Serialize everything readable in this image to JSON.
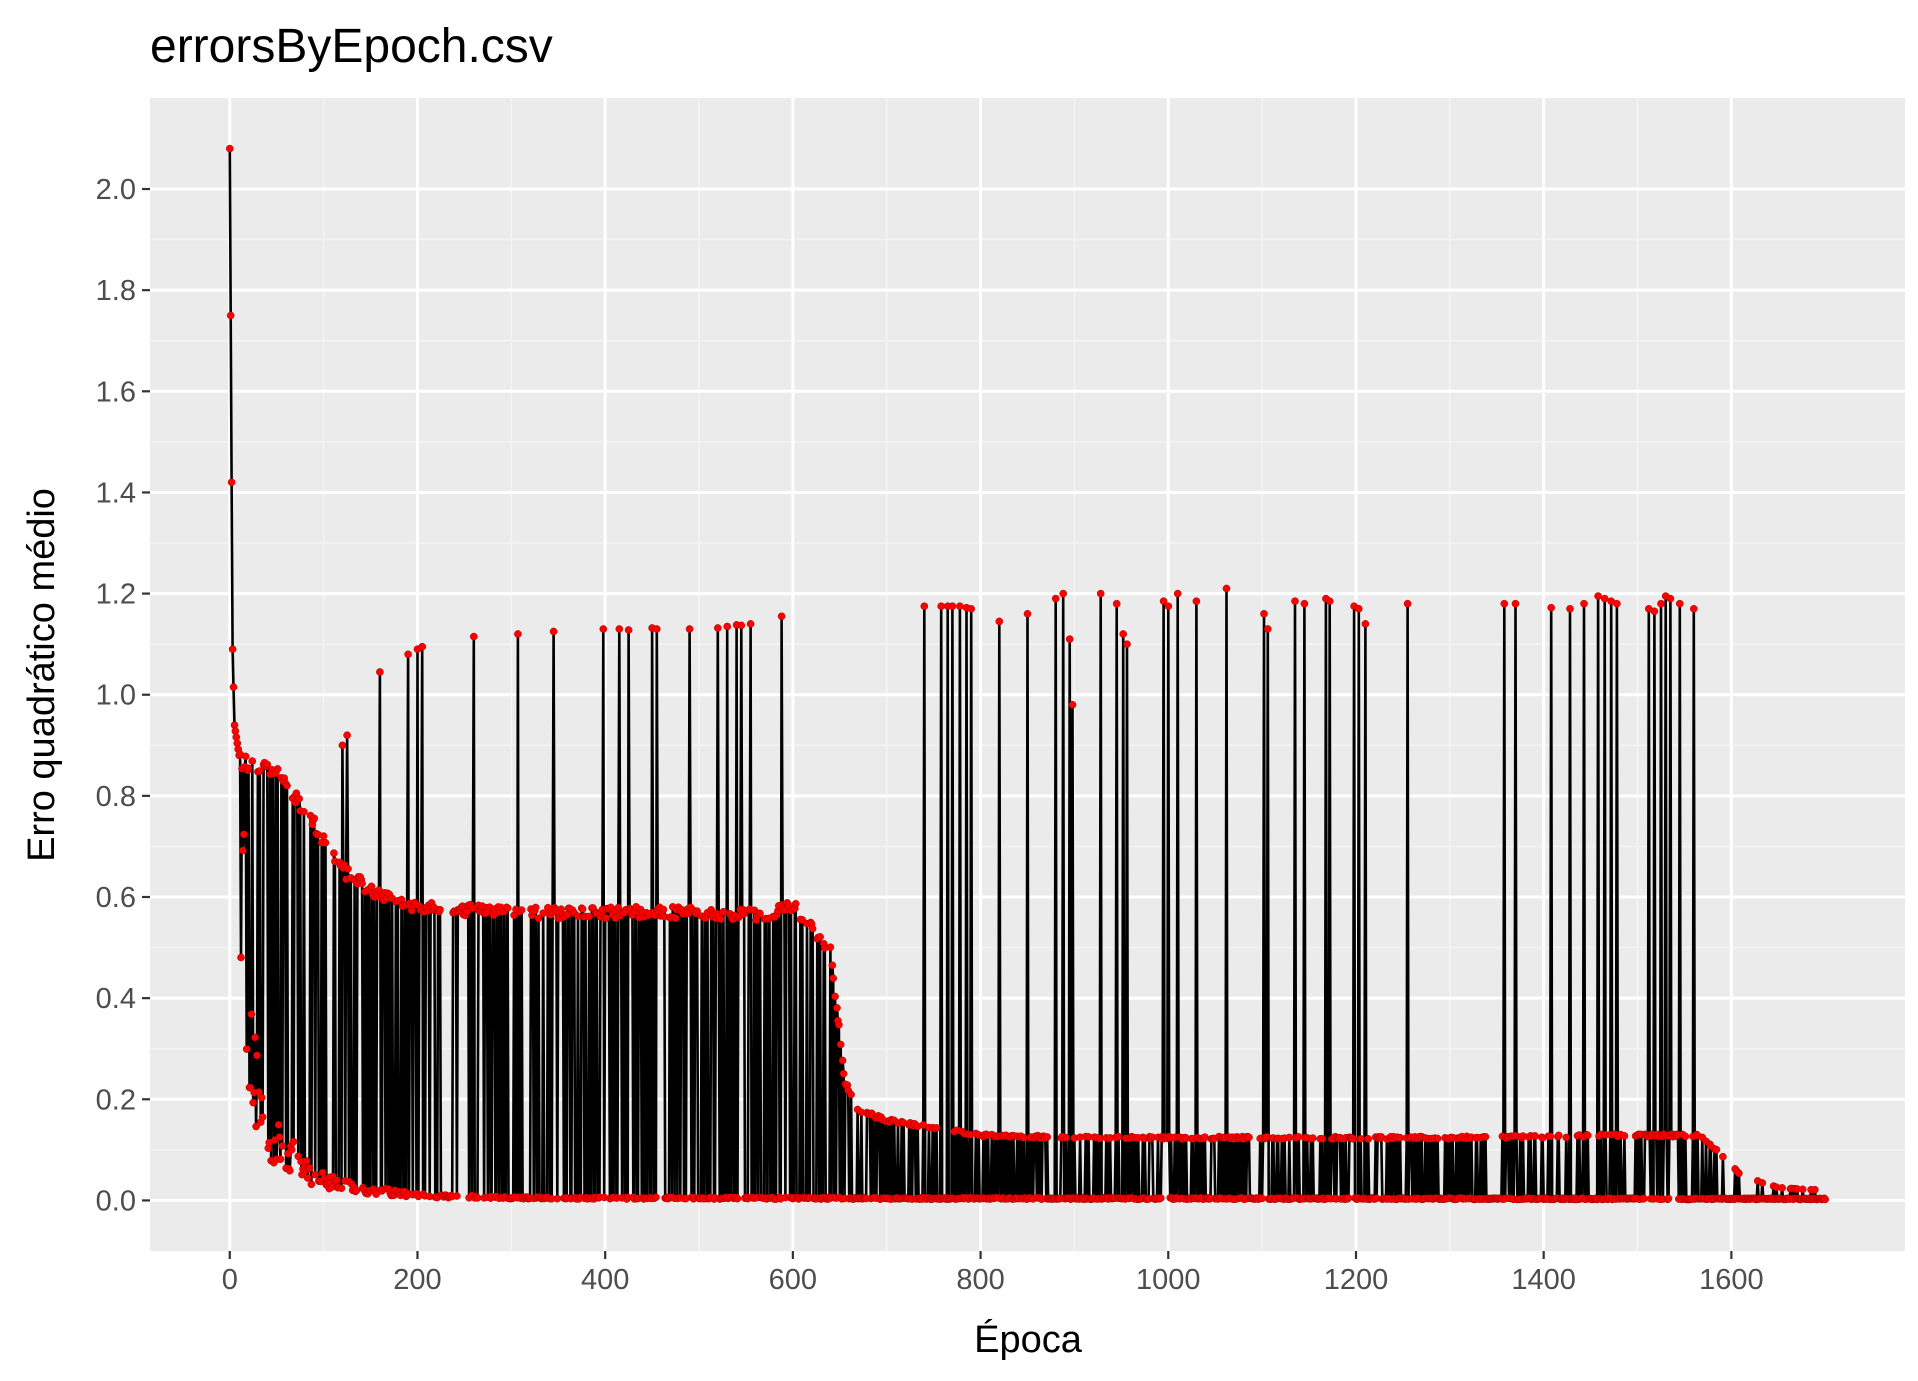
{
  "colors": {
    "panel_background": "#ebebeb",
    "grid_major": "#ffffff",
    "grid_minor": "#f4f4f4",
    "line": "#000000",
    "point": "#ff0000",
    "tick_text": "#4d4d4d"
  },
  "chart_data": {
    "type": "line",
    "title": "errorsByEpoch.csv",
    "xlabel": "Época",
    "ylabel": "Erro quadrático médio",
    "xlim": [
      -85,
      1785
    ],
    "ylim": [
      -0.1,
      2.18
    ],
    "x_ticks": [
      0,
      200,
      400,
      600,
      800,
      1000,
      1200,
      1400,
      1600
    ],
    "x_tick_labels": [
      "0",
      "200",
      "400",
      "600",
      "800",
      "1000",
      "1200",
      "1400",
      "1600"
    ],
    "y_ticks": [
      0.0,
      0.2,
      0.4,
      0.6,
      0.8,
      1.0,
      1.2,
      1.4,
      1.6,
      1.8,
      2.0
    ],
    "y_tick_labels": [
      "0.0",
      "0.2",
      "0.4",
      "0.6",
      "0.8",
      "1.0",
      "1.2",
      "1.4",
      "1.6",
      "1.8",
      "2.0"
    ],
    "grid": true,
    "legend": "none",
    "series": [
      {
        "marker": "point",
        "note_points": "x = epoch (0..1700), y = mean squared error; dense alternating oscillation between low baseline and upper envelope with sporadic spikes",
        "x_range": [
          0,
          1700
        ],
        "baseline_key_points": [
          [
            0,
            0.95
          ],
          [
            10,
            0.88
          ],
          [
            20,
            0.3
          ],
          [
            40,
            0.12
          ],
          [
            60,
            0.1
          ],
          [
            80,
            0.06
          ],
          [
            100,
            0.04
          ],
          [
            150,
            0.02
          ],
          [
            200,
            0.01
          ],
          [
            300,
            0.005
          ],
          [
            700,
            0.004
          ],
          [
            1700,
            0.003
          ]
        ],
        "upper_envelope_key_points": [
          [
            0,
            2.08
          ],
          [
            3,
            1.09
          ],
          [
            5,
            0.94
          ],
          [
            10,
            0.88
          ],
          [
            50,
            0.86
          ],
          [
            80,
            0.78
          ],
          [
            100,
            0.72
          ],
          [
            120,
            0.66
          ],
          [
            150,
            0.62
          ],
          [
            200,
            0.585
          ],
          [
            300,
            0.575
          ],
          [
            500,
            0.575
          ],
          [
            570,
            0.57
          ],
          [
            600,
            0.59
          ],
          [
            640,
            0.5
          ],
          [
            655,
            0.24
          ],
          [
            670,
            0.18
          ],
          [
            700,
            0.16
          ],
          [
            800,
            0.13
          ],
          [
            900,
            0.125
          ],
          [
            1000,
            0.125
          ],
          [
            1300,
            0.125
          ],
          [
            1500,
            0.13
          ],
          [
            1565,
            0.13
          ],
          [
            1590,
            0.09
          ],
          [
            1610,
            0.05
          ],
          [
            1650,
            0.025
          ],
          [
            1700,
            0.02
          ]
        ],
        "spikes": [
          [
            120,
            0.9
          ],
          [
            125,
            0.92
          ],
          [
            160,
            1.045
          ],
          [
            190,
            1.08
          ],
          [
            200,
            1.09
          ],
          [
            205,
            1.095
          ],
          [
            260,
            1.115
          ],
          [
            307,
            1.12
          ],
          [
            345,
            1.125
          ],
          [
            398,
            1.13
          ],
          [
            415,
            1.13
          ],
          [
            425,
            1.128
          ],
          [
            450,
            1.132
          ],
          [
            455,
            1.13
          ],
          [
            490,
            1.13
          ],
          [
            520,
            1.132
          ],
          [
            530,
            1.135
          ],
          [
            540,
            1.138
          ],
          [
            545,
            1.137
          ],
          [
            555,
            1.14
          ],
          [
            588,
            1.155
          ],
          [
            740,
            1.175
          ],
          [
            758,
            1.175
          ],
          [
            765,
            1.175
          ],
          [
            770,
            1.175
          ],
          [
            778,
            1.175
          ],
          [
            785,
            1.172
          ],
          [
            790,
            1.17
          ],
          [
            820,
            1.145
          ],
          [
            850,
            1.16
          ],
          [
            880,
            1.19
          ],
          [
            888,
            1.2
          ],
          [
            895,
            1.11
          ],
          [
            898,
            0.98
          ],
          [
            928,
            1.2
          ],
          [
            945,
            1.18
          ],
          [
            952,
            1.12
          ],
          [
            956,
            1.1
          ],
          [
            995,
            1.185
          ],
          [
            1000,
            1.175
          ],
          [
            1010,
            1.2
          ],
          [
            1030,
            1.185
          ],
          [
            1062,
            1.21
          ],
          [
            1102,
            1.16
          ],
          [
            1106,
            1.13
          ],
          [
            1135,
            1.185
          ],
          [
            1145,
            1.18
          ],
          [
            1168,
            1.19
          ],
          [
            1172,
            1.185
          ],
          [
            1198,
            1.175
          ],
          [
            1203,
            1.17
          ],
          [
            1210,
            1.14
          ],
          [
            1255,
            1.18
          ],
          [
            1358,
            1.18
          ],
          [
            1370,
            1.18
          ],
          [
            1408,
            1.172
          ],
          [
            1428,
            1.17
          ],
          [
            1443,
            1.18
          ],
          [
            1458,
            1.195
          ],
          [
            1465,
            1.19
          ],
          [
            1472,
            1.185
          ],
          [
            1478,
            1.18
          ],
          [
            1512,
            1.17
          ],
          [
            1518,
            1.165
          ],
          [
            1525,
            1.18
          ],
          [
            1530,
            1.195
          ],
          [
            1535,
            1.19
          ],
          [
            1545,
            1.18
          ],
          [
            1560,
            1.17
          ]
        ]
      }
    ]
  }
}
